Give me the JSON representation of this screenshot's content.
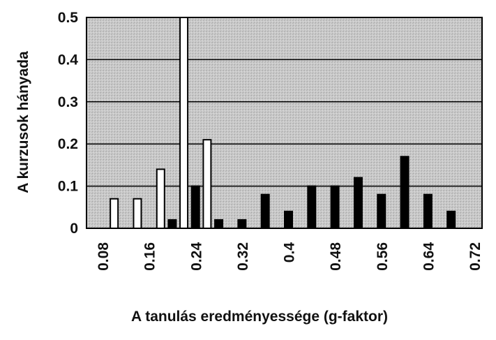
{
  "chart_data": {
    "type": "bar",
    "title": "",
    "xlabel": "A tanulás eredményessége (g-faktor)",
    "ylabel": "A kurzusok hányada",
    "ylim": [
      0,
      0.5
    ],
    "xlim": [
      0.08,
      0.72
    ],
    "yticks": [
      "0",
      "0.1",
      "0.2",
      "0.3",
      "0.4",
      "0.5"
    ],
    "xticks": [
      "0.08",
      "0.16",
      "0.24",
      "0.32",
      "0.4",
      "0.48",
      "0.56",
      "0.64",
      "0.72"
    ],
    "grid": true,
    "legend": "none",
    "series": [
      {
        "color": "#ffffff",
        "points": [
          {
            "x": 0.1,
            "y": 0.07
          },
          {
            "x": 0.14,
            "y": 0.07
          },
          {
            "x": 0.18,
            "y": 0.14
          },
          {
            "x": 0.22,
            "y": 0.5
          },
          {
            "x": 0.26,
            "y": 0.21
          }
        ]
      },
      {
        "color": "#000000",
        "points": [
          {
            "x": 0.2,
            "y": 0.02
          },
          {
            "x": 0.24,
            "y": 0.1
          },
          {
            "x": 0.28,
            "y": 0.02
          },
          {
            "x": 0.32,
            "y": 0.02
          },
          {
            "x": 0.36,
            "y": 0.08
          },
          {
            "x": 0.4,
            "y": 0.04
          },
          {
            "x": 0.44,
            "y": 0.1
          },
          {
            "x": 0.48,
            "y": 0.1
          },
          {
            "x": 0.52,
            "y": 0.12
          },
          {
            "x": 0.56,
            "y": 0.08
          },
          {
            "x": 0.6,
            "y": 0.17
          },
          {
            "x": 0.64,
            "y": 0.08
          },
          {
            "x": 0.68,
            "y": 0.04
          }
        ]
      }
    ]
  }
}
